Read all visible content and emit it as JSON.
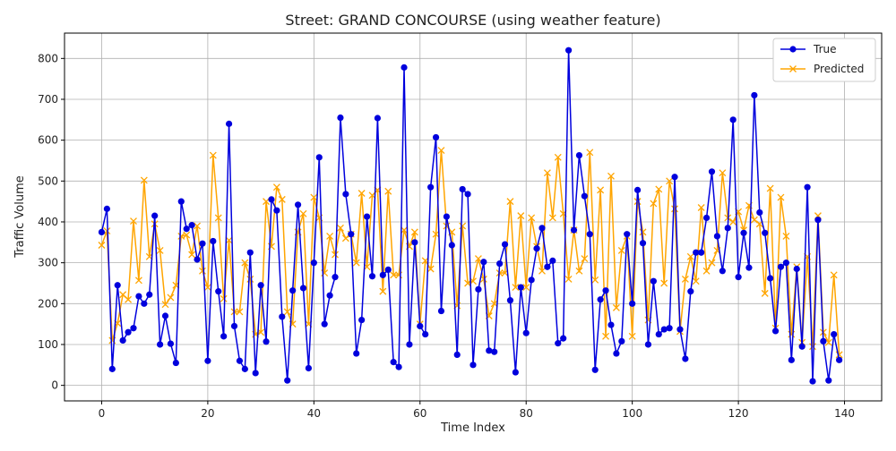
{
  "chart_data": {
    "type": "line",
    "title": "Street: GRAND CONCOURSE (using weather feature)",
    "xlabel": "Time Index",
    "ylabel": "Traffic Volume",
    "xlim": [
      -7,
      147
    ],
    "ylim": [
      -38,
      862
    ],
    "x_ticks": [
      0,
      20,
      40,
      60,
      80,
      100,
      120,
      140
    ],
    "y_ticks": [
      0,
      100,
      200,
      300,
      400,
      500,
      600,
      700,
      800
    ],
    "grid": true,
    "legend_position": "top-right",
    "series": [
      {
        "name": "True",
        "color": "#0000dd",
        "marker": "circle",
        "values": [
          375,
          432,
          40,
          245,
          110,
          130,
          140,
          218,
          200,
          222,
          415,
          100,
          170,
          102,
          55,
          450,
          383,
          392,
          308,
          347,
          60,
          353,
          230,
          120,
          640,
          145,
          60,
          40,
          325,
          30,
          245,
          107,
          455,
          428,
          168,
          12,
          232,
          442,
          238,
          42,
          300,
          558,
          150,
          220,
          265,
          655,
          468,
          370,
          78,
          160,
          413,
          267,
          654,
          270,
          283,
          57,
          45,
          778,
          100,
          350,
          145,
          125,
          485,
          607,
          182,
          413,
          343,
          75,
          480,
          468,
          50,
          235,
          302,
          85,
          82,
          298,
          345,
          208,
          32,
          240,
          128,
          258,
          335,
          385,
          290,
          305,
          103,
          115,
          820,
          380,
          563,
          463,
          370,
          38,
          210,
          232,
          148,
          78,
          108,
          370,
          200,
          478,
          348,
          100,
          255,
          125,
          137,
          140,
          510,
          137,
          65,
          230,
          325,
          325,
          410,
          523,
          365,
          280,
          385,
          650,
          265,
          373,
          288,
          710,
          423,
          373,
          262,
          133,
          290,
          300,
          62,
          285,
          95,
          485,
          10,
          405,
          108,
          12,
          125,
          62
        ]
      },
      {
        "name": "Predicted",
        "color": "#ffa500",
        "marker": "x",
        "values": [
          343,
          378,
          110,
          152,
          222,
          210,
          402,
          257,
          502,
          315,
          395,
          330,
          198,
          215,
          245,
          365,
          368,
          320,
          390,
          280,
          240,
          563,
          410,
          212,
          355,
          180,
          180,
          300,
          260,
          125,
          130,
          450,
          340,
          485,
          455,
          180,
          150,
          375,
          420,
          150,
          460,
          410,
          275,
          365,
          320,
          385,
          360,
          370,
          300,
          470,
          290,
          465,
          478,
          230,
          475,
          270,
          270,
          380,
          340,
          375,
          150,
          305,
          285,
          370,
          575,
          390,
          375,
          195,
          390,
          250,
          255,
          310,
          260,
          170,
          200,
          275,
          275,
          450,
          240,
          415,
          240,
          410,
          340,
          280,
          520,
          410,
          558,
          420,
          260,
          380,
          280,
          310,
          570,
          258,
          478,
          120,
          512,
          190,
          330,
          365,
          120,
          450,
          375,
          160,
          445,
          480,
          250,
          500,
          432,
          132,
          260,
          315,
          255,
          435,
          280,
          300,
          330,
          520,
          410,
          400,
          425,
          380,
          440,
          405,
          395,
          225,
          482,
          140,
          460,
          365,
          125,
          290,
          105,
          315,
          95,
          415,
          130,
          105,
          270,
          75
        ]
      }
    ]
  }
}
